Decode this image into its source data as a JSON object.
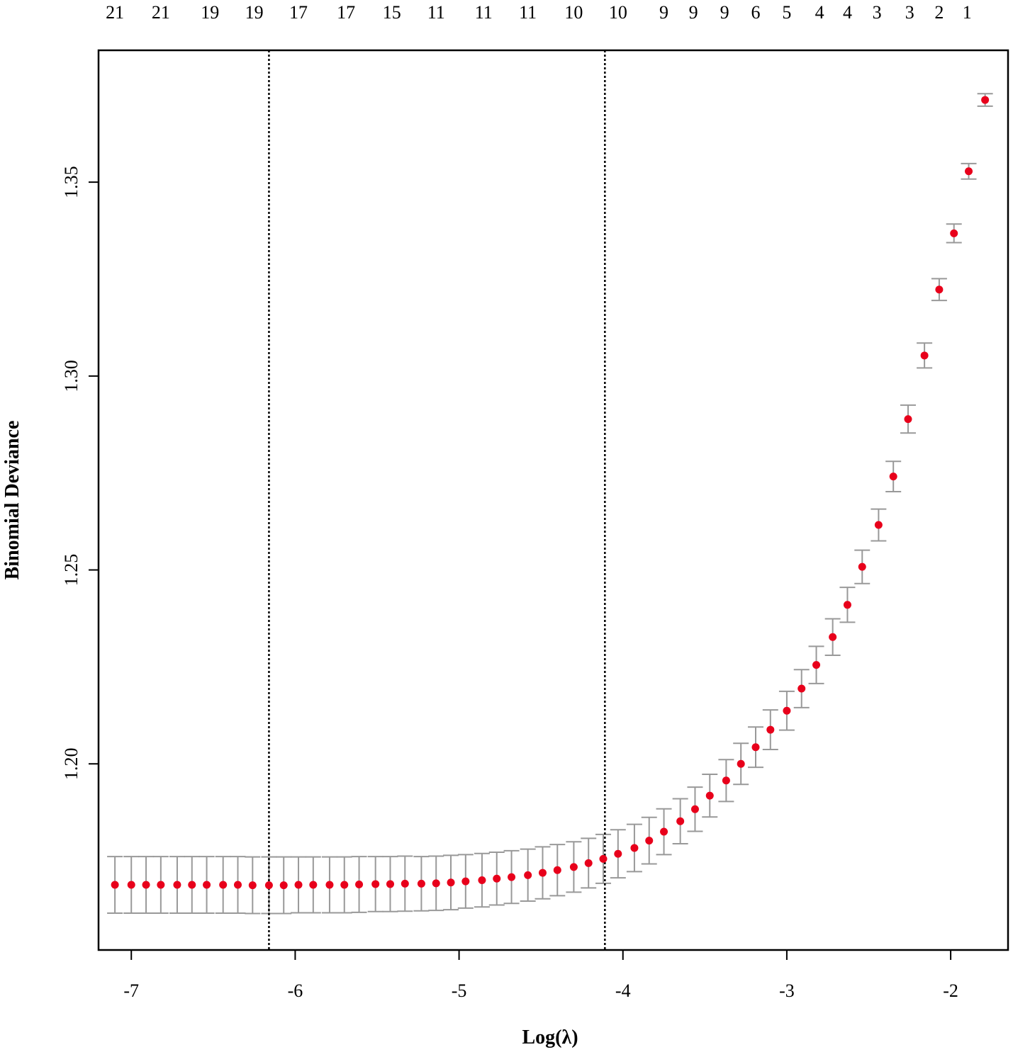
{
  "chart_data": {
    "type": "scatter",
    "xlabel": "Log(λ)",
    "ylabel": "Binomial Deviance",
    "xlim": [
      -7.2,
      -1.65
    ],
    "ylim": [
      1.152,
      1.384
    ],
    "x_ticks": [
      -7,
      -6,
      -5,
      -4,
      -3,
      -2
    ],
    "x_tick_labels": [
      "-7",
      "-6",
      "-5",
      "-4",
      "-3",
      "-2"
    ],
    "y_ticks": [
      1.2,
      1.25,
      1.3,
      1.35
    ],
    "y_tick_labels": [
      "1.20",
      "1.25",
      "1.30",
      "1.35"
    ],
    "top_axis": {
      "x": [
        -7.1,
        -6.82,
        -6.52,
        -6.25,
        -5.98,
        -5.69,
        -5.41,
        -5.14,
        -4.85,
        -4.58,
        -4.3,
        -4.03,
        -3.75,
        -3.57,
        -3.38,
        -3.19,
        -3.0,
        -2.8,
        -2.63,
        -2.45,
        -2.25,
        -2.07,
        -1.9
      ],
      "labels": [
        "21",
        "21",
        "19",
        "19",
        "17",
        "17",
        "15",
        "11",
        "11",
        "11",
        "10",
        "10",
        "9",
        "9",
        "9",
        "6",
        "5",
        "4",
        "4",
        "3",
        "3",
        "2",
        "1"
      ]
    },
    "vlines": [
      -6.16,
      -4.11
    ],
    "series": [
      {
        "x": [
          -7.1,
          -7.0,
          -6.91,
          -6.82,
          -6.72,
          -6.63,
          -6.54,
          -6.44,
          -6.35,
          -6.26,
          -6.16,
          -6.07,
          -5.98,
          -5.89,
          -5.79,
          -5.7,
          -5.61,
          -5.51,
          -5.42,
          -5.33,
          -5.23,
          -5.14,
          -5.05,
          -4.96,
          -4.86,
          -4.77,
          -4.68,
          -4.58,
          -4.49,
          -4.4,
          -4.3,
          -4.21,
          -4.12,
          -4.03,
          -3.93,
          -3.84,
          -3.75,
          -3.65,
          -3.56,
          -3.47,
          -3.37,
          -3.28,
          -3.19,
          -3.1,
          -3.0,
          -2.91,
          -2.82,
          -2.72,
          -2.63,
          -2.54,
          -2.44,
          -2.35,
          -2.26,
          -2.16,
          -2.07,
          -1.98,
          -1.89,
          -1.79
        ],
        "y": [
          1.1688,
          1.1688,
          1.1688,
          1.1688,
          1.1688,
          1.1688,
          1.1688,
          1.1688,
          1.1688,
          1.1687,
          1.1687,
          1.1687,
          1.1688,
          1.1688,
          1.1688,
          1.1688,
          1.1689,
          1.169,
          1.169,
          1.1691,
          1.1691,
          1.1692,
          1.1694,
          1.1697,
          1.17,
          1.1704,
          1.1708,
          1.1713,
          1.1719,
          1.1726,
          1.1734,
          1.1744,
          1.1755,
          1.1768,
          1.1783,
          1.1802,
          1.1825,
          1.1852,
          1.1883,
          1.1918,
          1.1957,
          1.2,
          1.2043,
          1.2088,
          1.2137,
          1.2194,
          1.2255,
          1.2327,
          1.241,
          1.2508,
          1.2616,
          1.2741,
          1.2889,
          1.3053,
          1.3223,
          1.3368,
          1.3528,
          1.3712
        ],
        "err": [
          0.0073,
          0.0073,
          0.0073,
          0.0073,
          0.0073,
          0.0073,
          0.0073,
          0.0073,
          0.0073,
          0.0073,
          0.0073,
          0.0073,
          0.0072,
          0.0072,
          0.0072,
          0.0072,
          0.0072,
          0.0071,
          0.0071,
          0.0071,
          0.007,
          0.007,
          0.007,
          0.0069,
          0.0069,
          0.0068,
          0.0068,
          0.0067,
          0.0067,
          0.0066,
          0.0065,
          0.0064,
          0.0063,
          0.0062,
          0.0061,
          0.006,
          0.0059,
          0.0058,
          0.0057,
          0.0055,
          0.0054,
          0.0053,
          0.0052,
          0.0051,
          0.005,
          0.0049,
          0.0048,
          0.0047,
          0.0045,
          0.0043,
          0.0041,
          0.0039,
          0.0036,
          0.0032,
          0.0028,
          0.0024,
          0.002,
          0.0016
        ]
      }
    ],
    "colors": {
      "point": "#e8001b",
      "errorbar": "#999999",
      "vline": "#000000",
      "frame": "#000000"
    }
  }
}
